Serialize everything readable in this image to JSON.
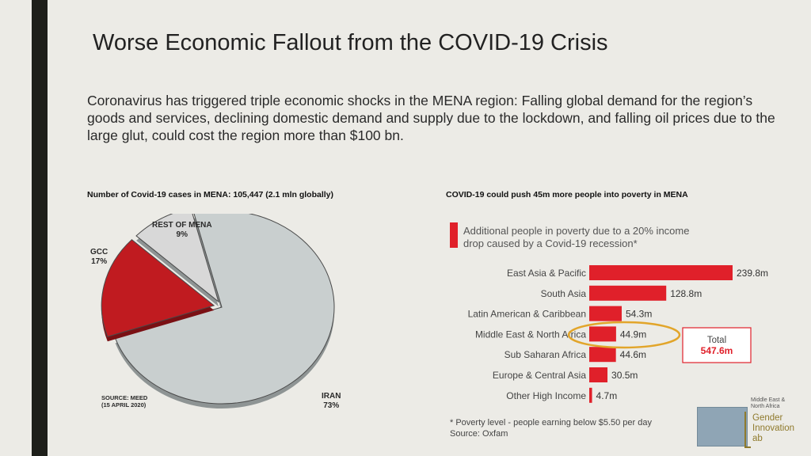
{
  "slide": {
    "title": "Worse Economic Fallout from the COVID-19 Crisis",
    "intro": "Coronavirus has triggered triple economic shocks in the MENA region: Falling global demand for the region’s goods and services, declining domestic demand and supply due to the lockdown, and falling oil prices due to the large glut, could cost the region more than $100 bn."
  },
  "left_chart": {
    "caption": "Number of Covid-19 cases in MENA: 105,447 (2.1 mln globally)",
    "source_line1": "SOURCE: MEED",
    "source_line2": "(15 APRIL 2020)"
  },
  "right_chart": {
    "caption": "COVID-19 could push 45m more people into poverty in MENA"
  },
  "logo": {
    "line1": "Middle East &",
    "line2": "North Africa",
    "line3": "Gender",
    "line4": "Innovation",
    "line5": "ab"
  },
  "chart_data": [
    {
      "type": "pie",
      "title": "",
      "slices": [
        {
          "label": "IRAN",
          "pct_label": "73%",
          "value": 73,
          "color": "#c9cfcf"
        },
        {
          "label": "GCC",
          "pct_label": "17%",
          "value": 17,
          "color": "#c01b20"
        },
        {
          "label": "REST OF MENA",
          "pct_label": "9%",
          "value": 9,
          "color": "#d8d8d8"
        }
      ]
    },
    {
      "type": "bar",
      "orientation": "horizontal",
      "title": "Additional people in poverty due to a 20% income drop caused by a Covid-19 recession*",
      "title_line1": "Additional people in poverty due to a 20% income",
      "title_line2": "drop caused by a Covid-19 recession*",
      "categories": [
        "East Asia & Pacific",
        "South Asia",
        "Latin American & Caribbean",
        "Middle East & North Africa",
        "Sub Saharan Africa",
        "Europe & Central Asia",
        "Other High Income"
      ],
      "values": [
        239.8,
        128.8,
        54.3,
        44.9,
        44.6,
        30.5,
        4.7
      ],
      "value_labels": [
        "239.8m",
        "128.8m",
        "54.3m",
        "44.9m",
        "44.6m",
        "30.5m",
        "4.7m"
      ],
      "bar_color": "#e0202a",
      "total_label": "Total",
      "total_value": "547.6m",
      "footnote": "* Poverty level - people earning below $5.50 per day",
      "source": "Source: Oxfam",
      "highlight": "Middle East & North Africa"
    }
  ]
}
